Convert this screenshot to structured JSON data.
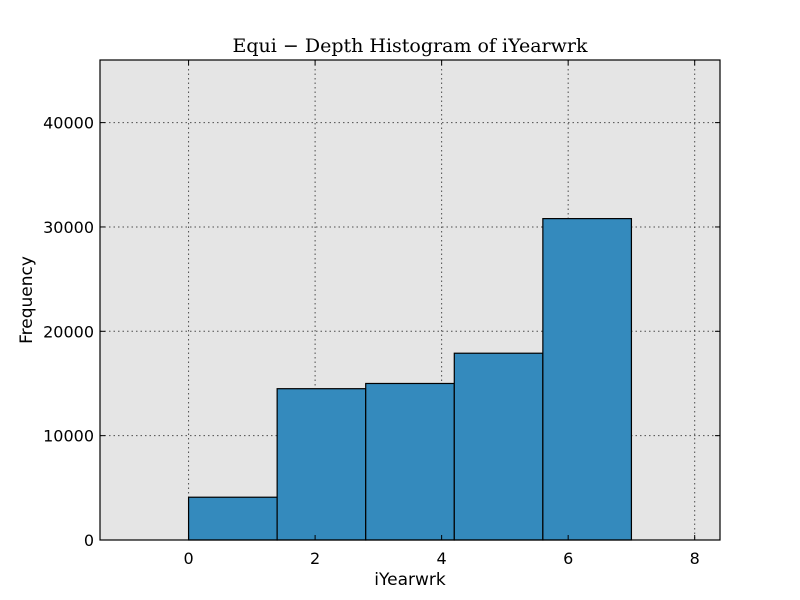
{
  "chart_data": {
    "type": "bar",
    "title": "Equi − Depth Histogram of iYearwrk",
    "xlabel": "iYearwrk",
    "ylabel": "Frequency",
    "xlim": [
      -1.4,
      8.4
    ],
    "ylim": [
      0,
      46000
    ],
    "xticks": [
      0,
      2,
      4,
      6,
      8
    ],
    "yticks": [
      0,
      10000,
      20000,
      30000,
      40000
    ],
    "grid": true,
    "bins": [
      {
        "x0": 0.0,
        "x1": 1.4,
        "value": 4100
      },
      {
        "x0": 1.4,
        "x1": 2.8,
        "value": 14500
      },
      {
        "x0": 2.8,
        "x1": 4.2,
        "value": 15000
      },
      {
        "x0": 4.2,
        "x1": 5.6,
        "value": 17900
      },
      {
        "x0": 5.6,
        "x1": 7.0,
        "value": 30800
      }
    ],
    "colors": {
      "bar": "#348abd",
      "plot_background": "#e5e5e5"
    }
  }
}
